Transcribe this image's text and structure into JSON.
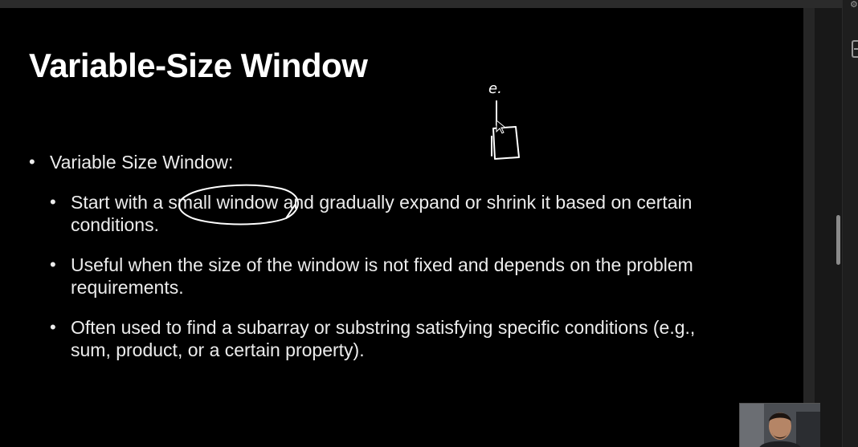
{
  "slide": {
    "title": "Variable-Size Window",
    "main_bullet": "Variable Size Window:",
    "sub_bullets": [
      "Start with a small window and gradually expand or shrink it based on certain conditions.",
      "Useful when the size of the window is not fixed and depends on the problem requirements.",
      "Often used to find a subarray or substring satisfying specific conditions (e.g., sum, product, or a certain property)."
    ]
  },
  "annotations": {
    "handwritten_label": "e.",
    "ink_color": "#ffffff"
  },
  "icons": {
    "side_top": "settings-icon",
    "side_square": "panel-icon"
  },
  "colors": {
    "slide_background": "#000000",
    "text": "#ececec",
    "title": "#ffffff"
  }
}
